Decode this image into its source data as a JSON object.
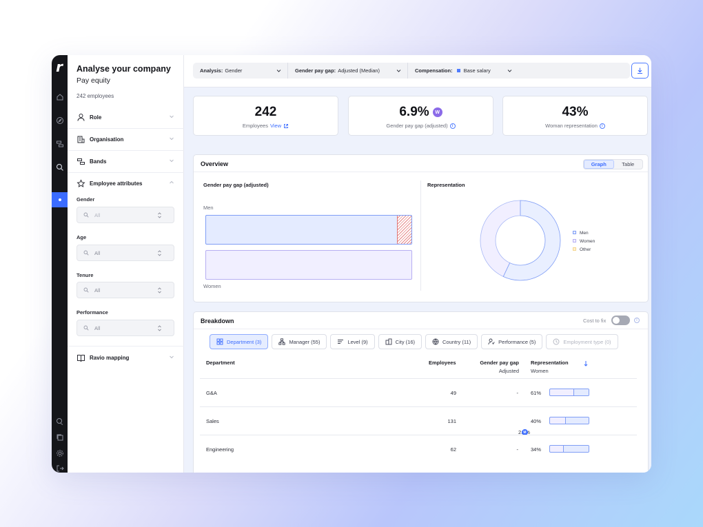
{
  "sidebar": {
    "title": "Analyse your company",
    "subtitle": "Pay equity",
    "employee_count": "242 employees",
    "sections": {
      "role": "Role",
      "organisation": "Organisation",
      "bands": "Bands",
      "attributes": "Employee attributes",
      "ravio": "Ravio mapping"
    },
    "filters": {
      "gender": {
        "label": "Gender",
        "value": "All"
      },
      "age": {
        "label": "Age",
        "value": "All"
      },
      "tenure": {
        "label": "Tenure",
        "value": "All"
      },
      "performance": {
        "label": "Performance",
        "value": "All"
      }
    }
  },
  "topbar": {
    "analysis_label": "Analysis:",
    "analysis_value": "Gender",
    "gap_label": "Gender pay gap:",
    "gap_value": "Adjusted (Median)",
    "comp_label": "Compensation:",
    "comp_value": "Base salary"
  },
  "kpis": {
    "employees": {
      "value": "242",
      "label": "Employees",
      "link": "View"
    },
    "gap": {
      "value": "6.9%",
      "label": "Gender pay gap (adjusted)",
      "badge": "W"
    },
    "women": {
      "value": "43%",
      "label": "Woman representation"
    }
  },
  "overview": {
    "title": "Overview",
    "toggle": [
      "Graph",
      "Table"
    ],
    "gap_title": "Gender pay gap (adjusted)",
    "men_label": "Men",
    "women_label": "Women",
    "rep_title": "Representation",
    "legend": [
      "Men",
      "Women",
      "Other"
    ]
  },
  "breakdown": {
    "title": "Breakdown",
    "cost_to_fix": "Cost to fix",
    "tabs": [
      "Department (3)",
      "Manager (55)",
      "Level (9)",
      "City (16)",
      "Country (11)",
      "Performance (5)",
      "Employment type (0)"
    ],
    "headers": {
      "department": "Department",
      "employees": "Employees",
      "gap": "Gender pay gap",
      "gap_sub": "Adjusted",
      "rep": "Representation",
      "rep_sub": "Women"
    },
    "rows": [
      {
        "name": "G&A",
        "employees": "49",
        "gap": "-",
        "rep": "61%",
        "rep_value": 0.61
      },
      {
        "name": "Sales",
        "employees": "131",
        "gap": "2.3%",
        "gap_badge": "M",
        "rep": "40%",
        "rep_value": 0.4
      },
      {
        "name": "Engineering",
        "employees": "62",
        "gap": "-",
        "rep": "34%",
        "rep_value": 0.34
      }
    ]
  },
  "colors": {
    "accent": "#3b6cff",
    "men": "#e4ebff",
    "women": "#f1efff",
    "other": "#fff3cf"
  }
}
